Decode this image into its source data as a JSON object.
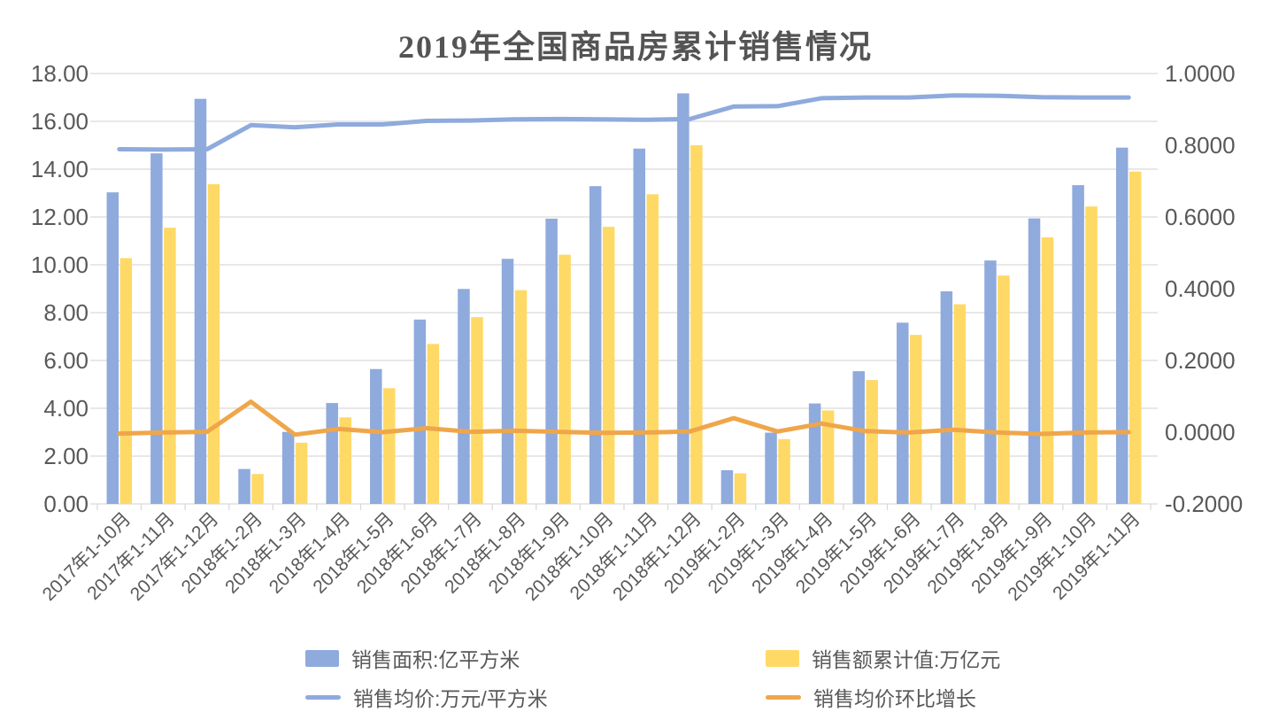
{
  "title": "2019年全国商品房累计销售情况",
  "colors": {
    "bar_blue": "#8FAADC",
    "bar_yellow": "#FFD966",
    "line_blue": "#8FAADC",
    "line_orange": "#EFA64A",
    "grid": "#D9D9D9",
    "axis_text": "#595959",
    "title_text": "#545454",
    "background": "#FFFFFF"
  },
  "chart_data": {
    "type": "bar",
    "subtype": "combo bar+line, dual axis",
    "title": "2019年全国商品房累计销售情况",
    "xlabel": "",
    "ylabel_left": "",
    "ylabel_right": "",
    "grid": true,
    "legend_position": "bottom",
    "categories": [
      "2017年1-10月",
      "2017年1-11月",
      "2017年1-12月",
      "2018年1-2月",
      "2018年1-3月",
      "2018年1-4月",
      "2018年1-5月",
      "2018年1-6月",
      "2018年1-7月",
      "2018年1-8月",
      "2018年1-9月",
      "2018年1-10月",
      "2018年1-11月",
      "2018年1-12月",
      "2019年1-2月",
      "2019年1-3月",
      "2019年1-4月",
      "2019年1-5月",
      "2019年1-6月",
      "2019年1-7月",
      "2019年1-8月",
      "2019年1-9月",
      "2019年1-10月",
      "2019年1-11月"
    ],
    "series": [
      {
        "name": "销售面积:亿平方米",
        "type": "bar",
        "axis": "left",
        "color": "#8FAADC",
        "values": [
          13.03,
          14.66,
          16.94,
          1.46,
          3.01,
          4.22,
          5.64,
          7.71,
          8.99,
          10.25,
          11.93,
          13.29,
          14.86,
          17.17,
          1.41,
          2.98,
          4.2,
          5.55,
          7.58,
          8.89,
          10.18,
          11.94,
          13.33,
          14.9
        ]
      },
      {
        "name": "销售额累计值:万亿元",
        "type": "bar",
        "axis": "left",
        "color": "#FFD966",
        "values": [
          10.28,
          11.55,
          13.37,
          1.25,
          2.56,
          3.62,
          4.84,
          6.69,
          7.81,
          8.94,
          10.42,
          11.59,
          12.95,
          15.0,
          1.28,
          2.71,
          3.91,
          5.18,
          7.07,
          8.35,
          9.55,
          11.15,
          12.44,
          13.9
        ]
      },
      {
        "name": "销售均价:万元/平方米",
        "type": "line",
        "axis": "right",
        "color": "#8FAADC",
        "values": [
          0.789,
          0.788,
          0.789,
          0.856,
          0.85,
          0.858,
          0.858,
          0.868,
          0.869,
          0.872,
          0.873,
          0.872,
          0.871,
          0.873,
          0.908,
          0.909,
          0.931,
          0.933,
          0.933,
          0.939,
          0.938,
          0.934,
          0.933,
          0.933
        ]
      },
      {
        "name": "销售均价环比增长",
        "type": "line",
        "axis": "right",
        "color": "#EFA64A",
        "values": [
          -0.004,
          -0.001,
          0.001,
          0.085,
          -0.007,
          0.009,
          0.0,
          0.011,
          0.001,
          0.004,
          0.001,
          -0.002,
          -0.001,
          0.002,
          0.039,
          0.002,
          0.024,
          0.003,
          -0.001,
          0.007,
          -0.001,
          -0.005,
          -0.001,
          0.0
        ]
      }
    ],
    "left_axis": {
      "min": 0,
      "max": 18,
      "step": 2,
      "labels": [
        "0.00",
        "2.00",
        "4.00",
        "6.00",
        "8.00",
        "10.00",
        "12.00",
        "14.00",
        "16.00",
        "18.00"
      ]
    },
    "right_axis": {
      "min": -0.2,
      "max": 1.0,
      "step": 0.2,
      "labels": [
        "-0.2000",
        "0.0000",
        "0.2000",
        "0.4000",
        "0.6000",
        "0.8000",
        "1.0000"
      ]
    }
  }
}
